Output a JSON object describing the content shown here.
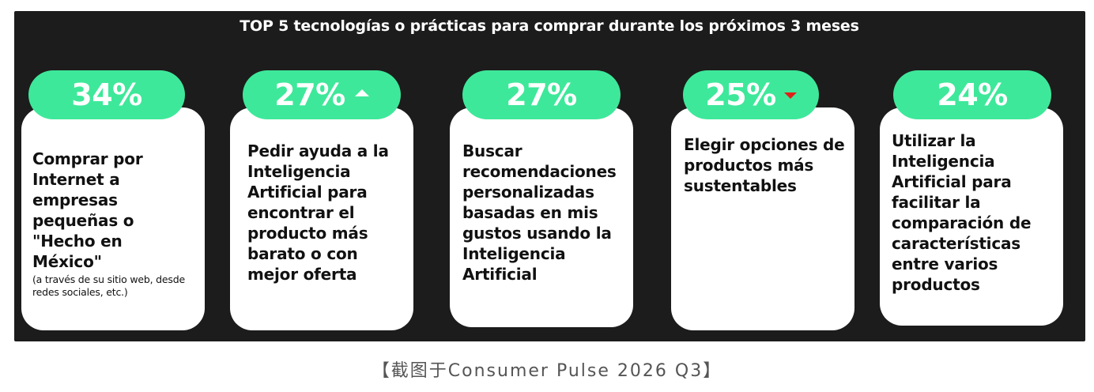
{
  "title": "TOP 5 tecnologías o prácticas para comprar durante los próximos 3 meses",
  "items": [
    {
      "pct": "34%",
      "text": "Comprar por Internet a empresas pequeñas o \"Hecho en México\"",
      "note": "(a través de su sitio web, desde redes sociales, etc.)",
      "trend": "none"
    },
    {
      "pct": "27%",
      "text": "Pedir ayuda a la Inteligencia Artificial para encontrar el producto más barato o con mejor oferta",
      "note": "",
      "trend": "up"
    },
    {
      "pct": "27%",
      "text": "Buscar recomendaciones personalizadas basadas en mis gustos usando la Inteligencia Artificial",
      "note": "",
      "trend": "none"
    },
    {
      "pct": "25%",
      "text": "Elegir opciones de productos más sustentables",
      "note": "",
      "trend": "down"
    },
    {
      "pct": "24%",
      "text": "Utilizar la Inteligencia Artificial para facilitar la comparación de características entre varios productos",
      "note": "",
      "trend": "none"
    }
  ],
  "colors": {
    "accent": "#3ee89a",
    "background": "#1c1c1c",
    "trend_down": "#e0201a"
  },
  "caption": "【截图于Consumer Pulse 2026 Q3】"
}
